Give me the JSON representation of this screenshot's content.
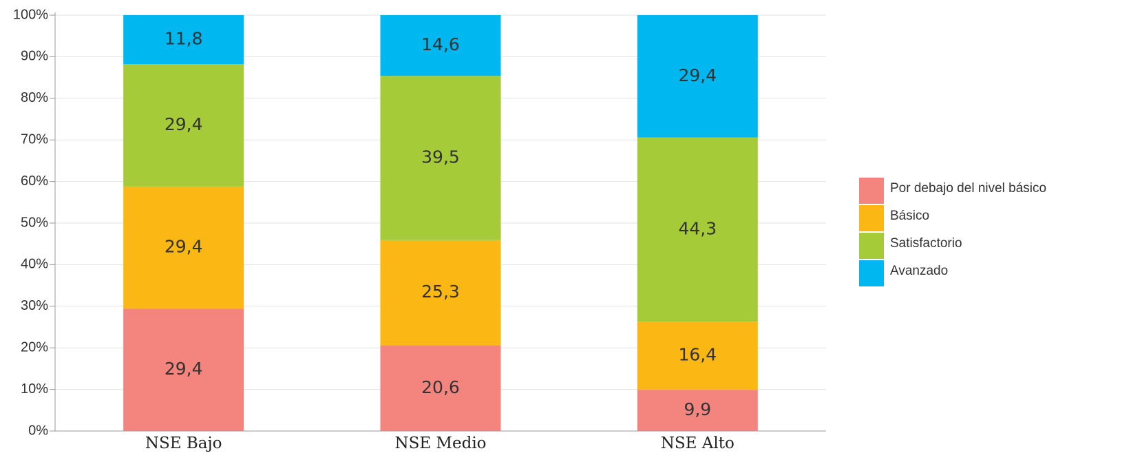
{
  "chart_data": {
    "type": "stacked_bar",
    "categories": [
      "NSE Bajo",
      "NSE Medio",
      "NSE Alto"
    ],
    "series": [
      {
        "name": "Por debajo del nivel básico",
        "color": "#f4847e",
        "values": [
          29.4,
          20.6,
          9.9
        ],
        "value_labels": [
          "29,4",
          "20,6",
          "9,9"
        ]
      },
      {
        "name": "Básico",
        "color": "#fbb713",
        "values": [
          29.4,
          25.3,
          16.4
        ],
        "value_labels": [
          "29,4",
          "25,3",
          "16,4"
        ]
      },
      {
        "name": "Satisfactorio",
        "color": "#a5cb39",
        "values": [
          29.4,
          39.5,
          44.3
        ],
        "value_labels": [
          "29,4",
          "39,5",
          "44,3"
        ]
      },
      {
        "name": "Avanzado",
        "color": "#00b8ef",
        "values": [
          11.8,
          14.6,
          29.4
        ],
        "value_labels": [
          "11,8",
          "14,6",
          "29,4"
        ]
      }
    ],
    "ylim": [
      0,
      100
    ],
    "yticks": [
      {
        "value": 0,
        "label": "0%"
      },
      {
        "value": 10,
        "label": "10%"
      },
      {
        "value": 20,
        "label": "20%"
      },
      {
        "value": 30,
        "label": "30%"
      },
      {
        "value": 40,
        "label": "40%"
      },
      {
        "value": 50,
        "label": "50%"
      },
      {
        "value": 60,
        "label": "60%"
      },
      {
        "value": 70,
        "label": "70%"
      },
      {
        "value": 80,
        "label": "80%"
      },
      {
        "value": 90,
        "label": "90%"
      },
      {
        "value": 100,
        "label": "100%"
      }
    ],
    "grid": true,
    "legend": "right"
  }
}
